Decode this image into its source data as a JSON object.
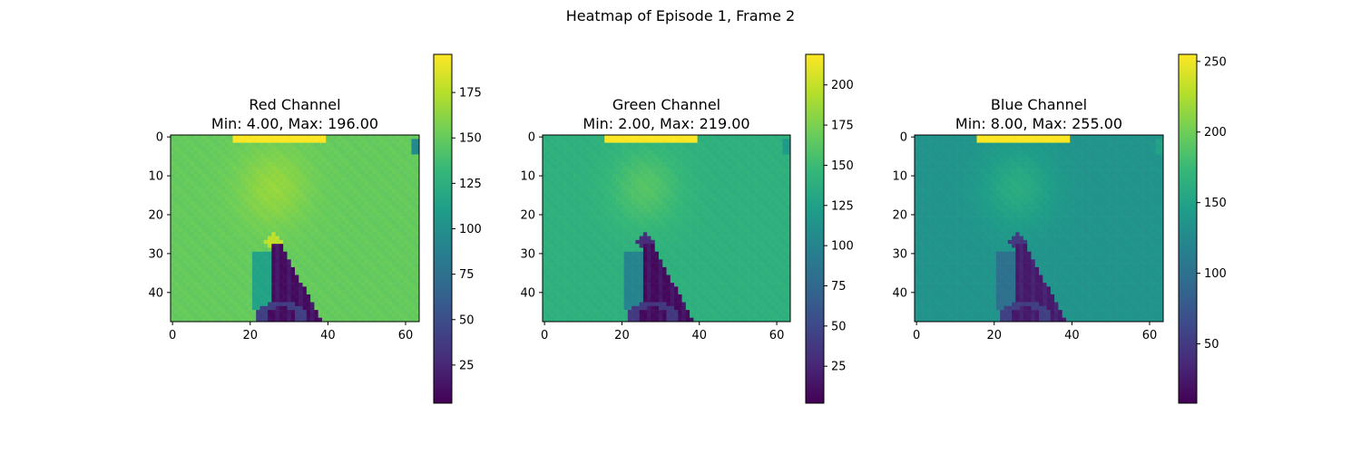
{
  "figure": {
    "suptitle": "Heatmap of Episode 1, Frame 2"
  },
  "colormap": {
    "name": "viridis",
    "stops": [
      "#440154",
      "#482878",
      "#3e4989",
      "#31688e",
      "#26828e",
      "#1f9e89",
      "#35b779",
      "#6ece58",
      "#b5de2b",
      "#fde725"
    ]
  },
  "chart_data": [
    {
      "type": "heatmap",
      "title": "Red Channel",
      "subtitle": "Min: 4.00, Max: 196.00",
      "rows": 48,
      "cols": 64,
      "x_ticks": [
        0,
        20,
        40,
        60
      ],
      "y_ticks": [
        0,
        10,
        20,
        30,
        40
      ],
      "vmin": 4.0,
      "vmax": 196.0,
      "colorbar_ticks": [
        25,
        50,
        75,
        100,
        125,
        150,
        175
      ],
      "scene_levels": {
        "background": 150,
        "center_glow": 165,
        "top_strip": 196,
        "dark_object": 10,
        "right_corner": 95,
        "lamp_blob": 178,
        "arm": 115
      }
    },
    {
      "type": "heatmap",
      "title": "Green Channel",
      "subtitle": "Min: 2.00, Max: 219.00",
      "rows": 48,
      "cols": 64,
      "x_ticks": [
        0,
        20,
        40,
        60
      ],
      "y_ticks": [
        0,
        10,
        20,
        30,
        40
      ],
      "vmin": 2.0,
      "vmax": 219.0,
      "colorbar_ticks": [
        25,
        50,
        75,
        100,
        125,
        150,
        175,
        200
      ],
      "scene_levels": {
        "background": 140,
        "center_glow": 160,
        "top_strip": 219,
        "dark_object": 8,
        "right_corner": 120,
        "lamp_blob": 30,
        "arm": 100
      }
    },
    {
      "type": "heatmap",
      "title": "Blue Channel",
      "subtitle": "Min: 8.00, Max: 255.00",
      "rows": 48,
      "cols": 64,
      "x_ticks": [
        0,
        20,
        40,
        60
      ],
      "y_ticks": [
        0,
        10,
        20,
        30,
        40
      ],
      "vmin": 8.0,
      "vmax": 255.0,
      "colorbar_ticks": [
        50,
        100,
        150,
        200,
        250
      ],
      "scene_levels": {
        "background": 135,
        "center_glow": 160,
        "top_strip": 255,
        "dark_object": 25,
        "right_corner": 150,
        "lamp_blob": 50,
        "arm": 100
      }
    }
  ]
}
